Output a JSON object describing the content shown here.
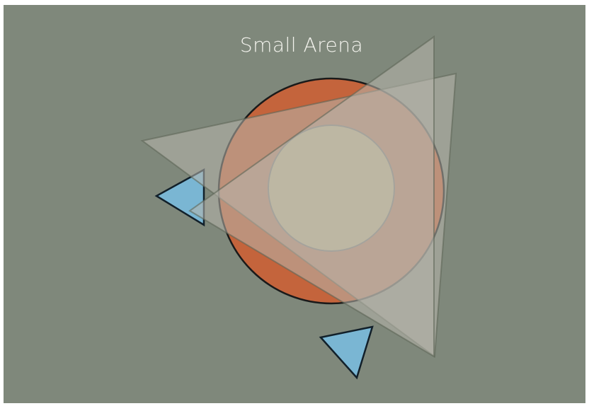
{
  "arena": {
    "title": "Small Arena",
    "colors": {
      "background": "#7f887b",
      "title_text": "#f2f2ec",
      "outer_ring": "#c4643c",
      "inner_zone": "#d2bd7f",
      "ring_stroke": "#1a1a1a",
      "zone_stroke": "#5b5b5b",
      "player_fill": "#7ab6d3",
      "player_stroke": "#12202a",
      "view_cone_fill": "#b8b6ad",
      "view_cone_stroke": "#5e6557"
    },
    "players": [
      {
        "id": "player-left",
        "icon": "triangle"
      },
      {
        "id": "player-bottom",
        "icon": "triangle"
      }
    ],
    "view_cones": [
      {
        "id": "view-cone-left"
      },
      {
        "id": "view-cone-bottom"
      }
    ]
  }
}
